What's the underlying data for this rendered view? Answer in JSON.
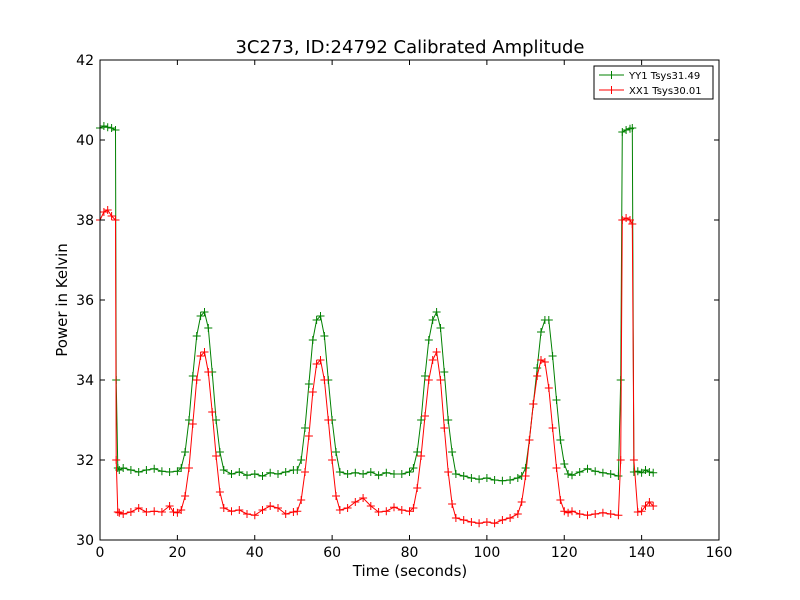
{
  "chart_data": {
    "type": "line",
    "title": "3C273, ID:24792 Calibrated Amplitude",
    "xlabel": "Time (seconds)",
    "ylabel": "Power in Kelvin",
    "xlim": [
      0,
      160
    ],
    "ylim": [
      30,
      42
    ],
    "xticks": [
      0,
      20,
      40,
      60,
      80,
      100,
      120,
      140,
      160
    ],
    "yticks": [
      30,
      32,
      34,
      36,
      38,
      40,
      42
    ],
    "grid": false,
    "legend_position": "top-right",
    "marker": "+",
    "series": [
      {
        "name": "YY1 Tsys31.49",
        "color": "#008000",
        "x": [
          0,
          1,
          2,
          3,
          4,
          4.2,
          4.6,
          5,
          6,
          8,
          10,
          12,
          14,
          16,
          18,
          20,
          21,
          22,
          23,
          24,
          25,
          26,
          27,
          28,
          29,
          30,
          31,
          32,
          34,
          36,
          38,
          40,
          42,
          44,
          46,
          48,
          50,
          51,
          52,
          53,
          54,
          55,
          56,
          57,
          58,
          59,
          60,
          61,
          62,
          64,
          66,
          68,
          70,
          72,
          74,
          76,
          78,
          80,
          81,
          82,
          83,
          84,
          85,
          86,
          87,
          88,
          89,
          90,
          91,
          92,
          94,
          96,
          98,
          100,
          102,
          104,
          106,
          108,
          109,
          110,
          111,
          112,
          113,
          114,
          115,
          116,
          117,
          118,
          119,
          120,
          121,
          122,
          124,
          126,
          128,
          130,
          132,
          134,
          134.6,
          135,
          136,
          137,
          137.6,
          138,
          139,
          140,
          141,
          142,
          143
        ],
        "values": [
          40.3,
          40.35,
          40.32,
          40.3,
          40.25,
          34.0,
          31.8,
          31.75,
          31.8,
          31.75,
          31.7,
          31.75,
          31.78,
          31.72,
          31.7,
          31.72,
          31.8,
          32.2,
          33.0,
          34.1,
          35.1,
          35.6,
          35.7,
          35.3,
          34.2,
          33.0,
          32.2,
          31.75,
          31.65,
          31.7,
          31.62,
          31.65,
          31.6,
          31.68,
          31.65,
          31.7,
          31.75,
          31.75,
          32.0,
          32.8,
          33.9,
          35.0,
          35.5,
          35.6,
          35.1,
          34.0,
          33.0,
          32.2,
          31.7,
          31.65,
          31.68,
          31.65,
          31.7,
          31.62,
          31.68,
          31.65,
          31.65,
          31.7,
          31.8,
          32.2,
          33.0,
          34.1,
          35.0,
          35.5,
          35.7,
          35.3,
          34.2,
          33.0,
          32.2,
          31.65,
          31.6,
          31.55,
          31.52,
          31.55,
          31.5,
          31.48,
          31.5,
          31.55,
          31.6,
          31.8,
          32.5,
          33.4,
          34.3,
          35.2,
          35.5,
          35.5,
          34.6,
          33.5,
          32.5,
          31.9,
          31.65,
          31.62,
          31.7,
          31.78,
          31.72,
          31.68,
          31.65,
          31.6,
          34.0,
          40.2,
          40.25,
          40.28,
          40.3,
          31.7,
          31.72,
          31.68,
          31.75,
          31.7,
          31.68
        ]
      },
      {
        "name": "XX1 Tsys30.01",
        "color": "#ff0000",
        "x": [
          0,
          1,
          2,
          3,
          4,
          4.2,
          4.6,
          5,
          6,
          8,
          10,
          12,
          14,
          16,
          18,
          19,
          20,
          21,
          22,
          23,
          24,
          25,
          26,
          27,
          28,
          29,
          30,
          31,
          32,
          34,
          36,
          38,
          40,
          42,
          44,
          46,
          48,
          50,
          51,
          52,
          53,
          54,
          55,
          56,
          57,
          58,
          59,
          60,
          61,
          62,
          64,
          66,
          68,
          70,
          72,
          74,
          76,
          78,
          80,
          81,
          82,
          83,
          84,
          85,
          86,
          87,
          88,
          89,
          90,
          91,
          92,
          94,
          96,
          98,
          100,
          102,
          104,
          106,
          108,
          109,
          110,
          111,
          112,
          113,
          114,
          115,
          116,
          117,
          118,
          119,
          120,
          121,
          122,
          124,
          126,
          128,
          130,
          132,
          134,
          134.6,
          135,
          136,
          137,
          137.6,
          138,
          139,
          140,
          141,
          142,
          143
        ],
        "values": [
          38.0,
          38.2,
          38.25,
          38.1,
          38.0,
          32.0,
          30.7,
          30.68,
          30.65,
          30.7,
          30.8,
          30.7,
          30.72,
          30.7,
          30.85,
          30.7,
          30.68,
          30.75,
          31.1,
          31.8,
          32.9,
          34.0,
          34.6,
          34.7,
          34.2,
          33.2,
          32.1,
          31.2,
          30.8,
          30.72,
          30.75,
          30.65,
          30.62,
          30.75,
          30.85,
          30.8,
          30.65,
          30.7,
          30.72,
          31.0,
          31.7,
          32.6,
          33.7,
          34.4,
          34.5,
          34.0,
          33.0,
          32.0,
          31.1,
          30.75,
          30.8,
          30.95,
          31.05,
          30.85,
          30.7,
          30.72,
          30.82,
          30.75,
          30.72,
          30.8,
          31.3,
          32.1,
          33.1,
          34.0,
          34.5,
          34.7,
          34.0,
          32.8,
          31.7,
          30.9,
          30.55,
          30.5,
          30.45,
          30.42,
          30.45,
          30.42,
          30.5,
          30.55,
          30.65,
          30.95,
          31.6,
          32.5,
          33.4,
          34.1,
          34.5,
          34.45,
          33.8,
          32.8,
          31.8,
          31.0,
          30.72,
          30.68,
          30.72,
          30.65,
          30.62,
          30.65,
          30.68,
          30.65,
          30.62,
          32.0,
          38.0,
          38.05,
          38.0,
          37.9,
          32.0,
          30.7,
          30.72,
          30.85,
          30.95,
          30.85
        ]
      }
    ]
  }
}
